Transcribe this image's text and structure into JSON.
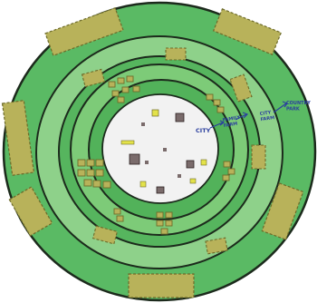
{
  "labels": {
    "city": "CITY",
    "family_farm": "FAMILY FARM",
    "city_farm": "CITY FARM",
    "country_park": "COUNTRY PARK"
  },
  "colors": {
    "outer_ring": "#5aba64",
    "outer_band": "#8ed18a",
    "mid_ring": "#56b55e",
    "inner_band": "#7dcb78",
    "inner_ring": "#52b25a",
    "city_core": "#f2f2f2",
    "ring_outline": "#1c2a1c",
    "field": "#b8b25a",
    "field_outline": "#6d6b2a",
    "building": "#7a6b6b",
    "building_yellow": "#e3e24a",
    "label_blue": "#2b3f9e"
  },
  "icons": [
    "arrow-icon"
  ]
}
